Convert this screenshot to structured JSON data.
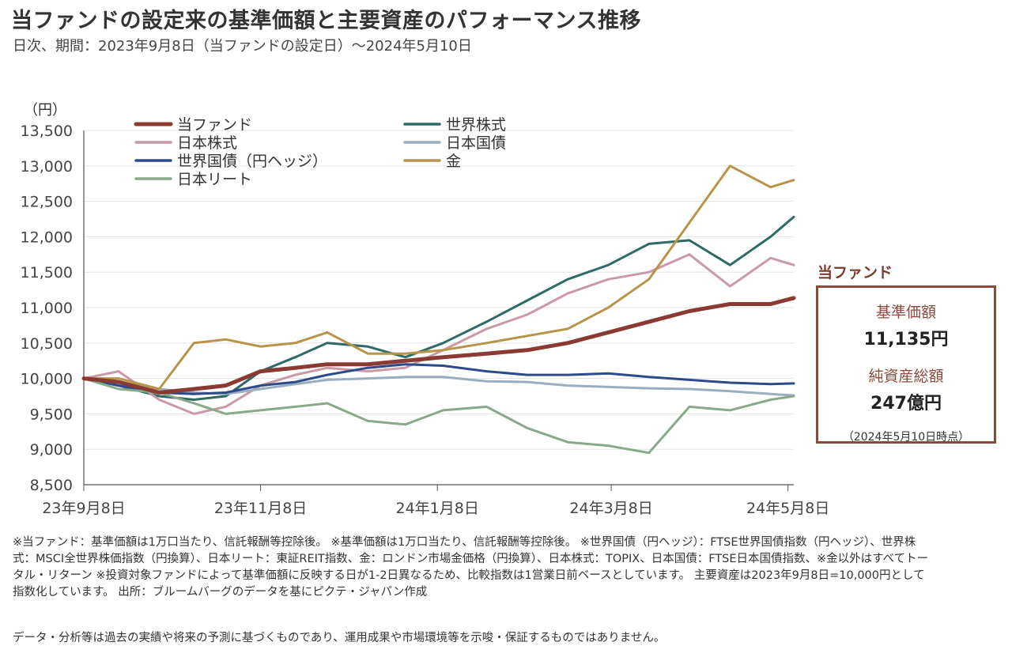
{
  "title": "当ファンドの設定来の基準価額と主要資産のパフォーマンス推移",
  "subtitle": "日次、期間：2023年9月8日（当ファンドの設定日）～2024年5月10日",
  "side_label": "当ファンド",
  "info_box": {
    "nav_label": "基準価額",
    "nav_value": "11,135円",
    "assets_label": "純資産総額",
    "assets_value": "247億円",
    "as_of": "（2024年5月10日時点）"
  },
  "notes": "※当ファンド：基準価額は1万口当たり、信託報酬等控除後。 ※基準価額は1万口当たり、信託報酬等控除後。 ※世界国債（円ヘッジ）：FTSE世界国債指数（円ヘッジ）、世界株式：MSCI全世界株価指数（円換算）、日本リート：東証REIT指数、金：ロンドン市場金価格（円換算）、日本株式：TOPIX、日本国債：FTSE日本国債指数、※金以外はすべてトータル・リターン ※投資対象ファンドによって基準価額に反映する日が1-2日異なるため、比較指数は1営業日前ベースとしています。 主要資産は2023年9月8日=10,000円として指数化しています。 出所：ブルームバーグのデータを基にピクテ・ジャパン作成",
  "disclaimer": "データ・分析等は過去の実績や将来の予測に基づくものであり、運用成果や市場環境等を示唆・保証するものではありません。",
  "chart_data": {
    "type": "line",
    "ylabel": "（円）",
    "ylim": [
      8500,
      13500
    ],
    "yticks": [
      8500,
      9000,
      9500,
      10000,
      10500,
      11000,
      11500,
      12000,
      12500,
      13000,
      13500
    ],
    "ytick_labels": [
      "8,500",
      "9,000",
      "9,500",
      "10,000",
      "10,500",
      "11,000",
      "11,500",
      "12,000",
      "12,500",
      "13,000",
      "13,500"
    ],
    "xlim": [
      "2023-09-08",
      "2024-05-10"
    ],
    "xticks": [
      "2023-09-08",
      "2023-11-08",
      "2024-01-08",
      "2024-03-08",
      "2024-05-08"
    ],
    "xtick_labels": [
      "23年9月8日",
      "23年11月8日",
      "24年1月8日",
      "24年3月8日",
      "24年5月8日"
    ],
    "grid": "horizontal",
    "legend": "top-left, two columns",
    "series": [
      {
        "name": "当ファンド",
        "color": "#8b3a32",
        "width": 5,
        "x": [
          "2023-09-08",
          "2023-09-20",
          "2023-10-04",
          "2023-10-16",
          "2023-10-27",
          "2023-11-08",
          "2023-11-20",
          "2023-12-01",
          "2023-12-15",
          "2023-12-28",
          "2024-01-10",
          "2024-01-25",
          "2024-02-08",
          "2024-02-22",
          "2024-03-07",
          "2024-03-21",
          "2024-04-04",
          "2024-04-18",
          "2024-05-02",
          "2024-05-10"
        ],
        "values": [
          10000,
          9950,
          9800,
          9850,
          9900,
          10100,
          10150,
          10200,
          10200,
          10250,
          10300,
          10350,
          10400,
          10500,
          10650,
          10800,
          10950,
          11050,
          11050,
          11135
        ]
      },
      {
        "name": "世界株式",
        "color": "#2e6b66",
        "width": 3,
        "x": [
          "2023-09-08",
          "2023-09-20",
          "2023-10-04",
          "2023-10-16",
          "2023-10-27",
          "2023-11-08",
          "2023-11-20",
          "2023-12-01",
          "2023-12-15",
          "2023-12-28",
          "2024-01-10",
          "2024-01-25",
          "2024-02-08",
          "2024-02-22",
          "2024-03-07",
          "2024-03-21",
          "2024-04-04",
          "2024-04-18",
          "2024-05-02",
          "2024-05-10"
        ],
        "values": [
          10000,
          9900,
          9750,
          9700,
          9750,
          10100,
          10300,
          10500,
          10450,
          10300,
          10500,
          10800,
          11100,
          11400,
          11600,
          11900,
          11950,
          11600,
          12000,
          12280
        ]
      },
      {
        "name": "日本株式",
        "color": "#c99aa5",
        "width": 3,
        "x": [
          "2023-09-08",
          "2023-09-20",
          "2023-10-04",
          "2023-10-16",
          "2023-10-27",
          "2023-11-08",
          "2023-11-20",
          "2023-12-01",
          "2023-12-15",
          "2023-12-28",
          "2024-01-10",
          "2024-01-25",
          "2024-02-08",
          "2024-02-22",
          "2024-03-07",
          "2024-03-21",
          "2024-04-04",
          "2024-04-18",
          "2024-05-02",
          "2024-05-10"
        ],
        "values": [
          10000,
          10100,
          9700,
          9500,
          9600,
          9900,
          10050,
          10150,
          10100,
          10150,
          10400,
          10700,
          10900,
          11200,
          11400,
          11500,
          11750,
          11300,
          11700,
          11600
        ]
      },
      {
        "name": "日本国債",
        "color": "#9aaebf",
        "width": 3,
        "x": [
          "2023-09-08",
          "2023-09-20",
          "2023-10-04",
          "2023-10-16",
          "2023-10-27",
          "2023-11-08",
          "2023-11-20",
          "2023-12-01",
          "2023-12-15",
          "2023-12-28",
          "2024-01-10",
          "2024-01-25",
          "2024-02-08",
          "2024-02-22",
          "2024-03-07",
          "2024-03-21",
          "2024-04-04",
          "2024-04-18",
          "2024-05-02",
          "2024-05-10"
        ],
        "values": [
          10000,
          9950,
          9850,
          9800,
          9780,
          9850,
          9920,
          9980,
          10000,
          10020,
          10020,
          9960,
          9950,
          9900,
          9880,
          9860,
          9850,
          9820,
          9780,
          9760
        ]
      },
      {
        "name": "世界国債（円ヘッジ）",
        "color": "#2d4a8a",
        "width": 3,
        "x": [
          "2023-09-08",
          "2023-09-20",
          "2023-10-04",
          "2023-10-16",
          "2023-10-27",
          "2023-11-08",
          "2023-11-20",
          "2023-12-01",
          "2023-12-15",
          "2023-12-28",
          "2024-01-10",
          "2024-01-25",
          "2024-02-08",
          "2024-02-22",
          "2024-03-07",
          "2024-03-21",
          "2024-04-04",
          "2024-04-18",
          "2024-05-02",
          "2024-05-10"
        ],
        "values": [
          10000,
          9900,
          9800,
          9780,
          9800,
          9900,
          9950,
          10050,
          10150,
          10200,
          10180,
          10100,
          10050,
          10050,
          10070,
          10020,
          9980,
          9940,
          9920,
          9930
        ]
      },
      {
        "name": "金",
        "color": "#b8944a",
        "width": 3,
        "x": [
          "2023-09-08",
          "2023-09-20",
          "2023-10-04",
          "2023-10-16",
          "2023-10-27",
          "2023-11-08",
          "2023-11-20",
          "2023-12-01",
          "2023-12-15",
          "2023-12-28",
          "2024-01-10",
          "2024-01-25",
          "2024-02-08",
          "2024-02-22",
          "2024-03-07",
          "2024-03-21",
          "2024-04-04",
          "2024-04-18",
          "2024-05-02",
          "2024-05-10"
        ],
        "values": [
          10000,
          10000,
          9850,
          10500,
          10550,
          10450,
          10500,
          10650,
          10350,
          10350,
          10400,
          10500,
          10600,
          10700,
          11000,
          11400,
          12200,
          13000,
          12700,
          12800
        ]
      },
      {
        "name": "日本リート",
        "color": "#8aa88a",
        "width": 3,
        "x": [
          "2023-09-08",
          "2023-09-20",
          "2023-10-04",
          "2023-10-16",
          "2023-10-27",
          "2023-11-08",
          "2023-11-20",
          "2023-12-01",
          "2023-12-15",
          "2023-12-28",
          "2024-01-10",
          "2024-01-25",
          "2024-02-08",
          "2024-02-22",
          "2024-03-07",
          "2024-03-21",
          "2024-04-04",
          "2024-04-18",
          "2024-05-02",
          "2024-05-10"
        ],
        "values": [
          10000,
          9850,
          9800,
          9650,
          9500,
          9550,
          9600,
          9650,
          9400,
          9350,
          9550,
          9600,
          9300,
          9100,
          9050,
          8950,
          9600,
          9550,
          9700,
          9750
        ]
      }
    ]
  }
}
